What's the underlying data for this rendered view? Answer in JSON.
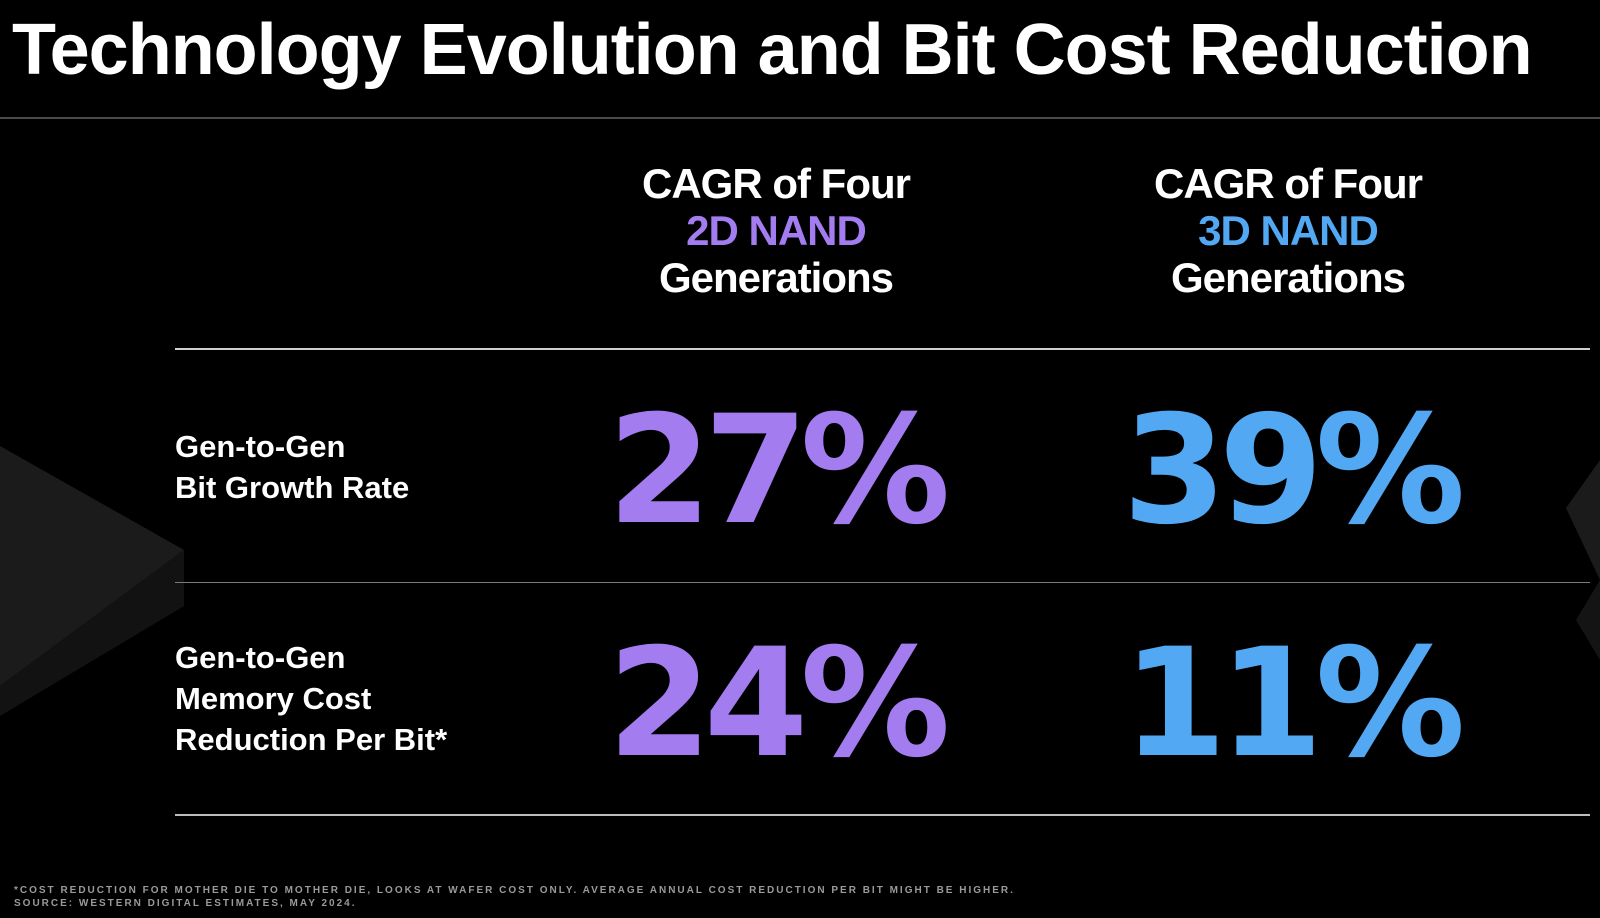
{
  "title": "Technology Evolution and Bit Cost Reduction",
  "columns": [
    {
      "line1": "CAGR of Four",
      "highlight": "2D NAND",
      "line3": "Generations",
      "color": "#a37cf0"
    },
    {
      "line1": "CAGR of Four",
      "highlight": "3D NAND",
      "line3": "Generations",
      "color": "#52a8f2"
    }
  ],
  "rows": [
    {
      "label_lines": [
        "Gen-to-Gen",
        "Bit Growth Rate"
      ],
      "values": [
        "27%",
        "39%"
      ]
    },
    {
      "label_lines": [
        "Gen-to-Gen",
        "Memory Cost",
        "Reduction Per Bit*"
      ],
      "values": [
        "24%",
        "11%"
      ]
    }
  ],
  "footnote": {
    "line1": "*COST REDUCTION FOR MOTHER DIE  TO MOTHER DIE, LOOKS AT WAFER COST ONLY. AVERAGE ANNUAL COST REDUCTION PER BIT MIGHT BE HIGHER.",
    "line2": "SOURCE: WESTERN DIGITAL ESTIMATES, MAY 2024."
  }
}
